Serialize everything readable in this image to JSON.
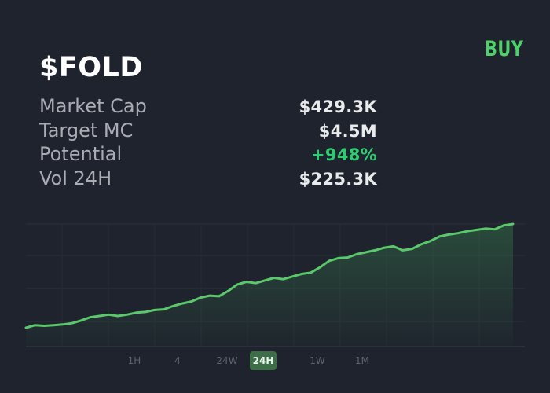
{
  "buy_label": "BUY",
  "ticker": "$FOLD",
  "stats": {
    "market_cap": {
      "label": "Market Cap",
      "value": "$429.3K"
    },
    "target_mc": {
      "label": "Target MC",
      "value": "$4.5M"
    },
    "potential": {
      "label": "Potential",
      "value": "+948%"
    },
    "vol_24h": {
      "label": "Vol 24H",
      "value": "$225.3K"
    }
  },
  "timeframes": [
    {
      "label": "1H",
      "active": false
    },
    {
      "label": "4",
      "active": false
    },
    {
      "label": "24W",
      "active": false
    },
    {
      "label": "24H",
      "active": true
    },
    {
      "label": "1W",
      "active": false
    },
    {
      "label": "1M",
      "active": false
    }
  ],
  "colors": {
    "background": "#1f232d",
    "accent_green": "#4fd16a",
    "line": "#5ac86b",
    "active_tab": "#3d6e47"
  },
  "chart_data": {
    "type": "area",
    "grid": true,
    "title": "",
    "xlabel": "",
    "ylabel": "",
    "values": [
      0,
      4,
      3,
      4,
      5,
      7,
      11,
      16,
      18,
      20,
      18,
      20,
      23,
      24,
      27,
      28,
      33,
      37,
      40,
      46,
      49,
      48,
      56,
      66,
      70,
      68,
      72,
      76,
      74,
      78,
      82,
      84,
      92,
      102,
      106,
      107,
      112,
      115,
      118,
      122,
      124,
      118,
      120,
      127,
      132,
      139,
      142,
      144,
      147,
      149,
      151,
      150,
      156,
      158
    ]
  }
}
